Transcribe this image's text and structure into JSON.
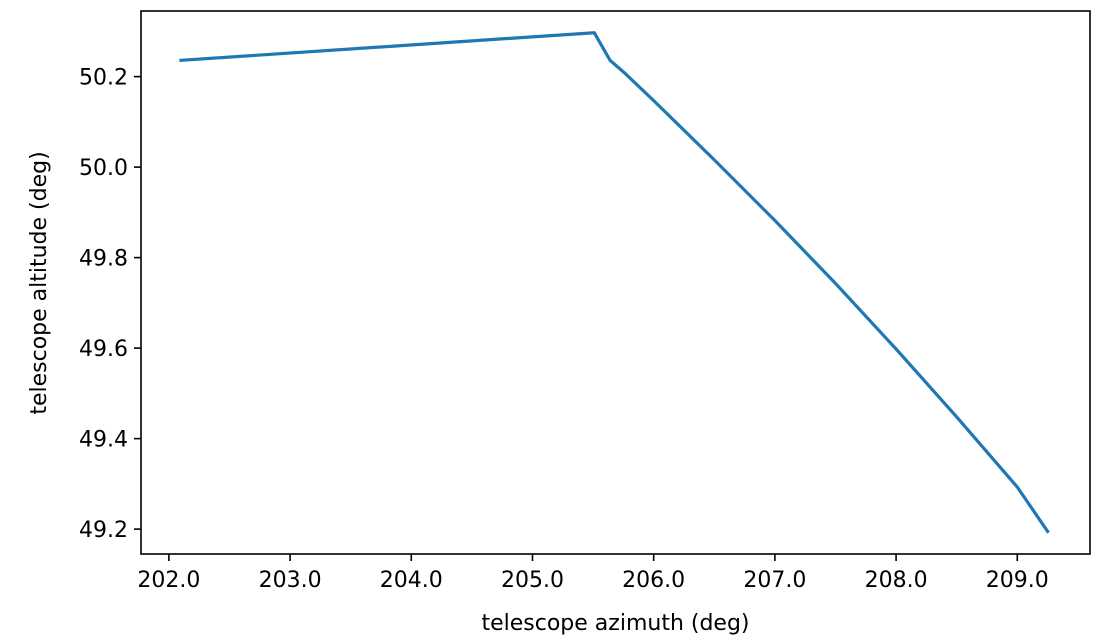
{
  "chart_data": {
    "type": "line",
    "title": "",
    "xlabel": "telescope azimuth (deg)",
    "ylabel": "telescope altitude (deg)",
    "xlim": [
      201.77,
      209.6
    ],
    "ylim": [
      49.145,
      50.345
    ],
    "xticks": [
      202.0,
      203.0,
      204.0,
      205.0,
      206.0,
      207.0,
      208.0,
      209.0
    ],
    "xtick_labels": [
      "202.0",
      "203.0",
      "204.0",
      "205.0",
      "206.0",
      "207.0",
      "208.0",
      "209.0"
    ],
    "yticks": [
      49.2,
      49.4,
      49.6,
      49.8,
      50.0,
      50.2
    ],
    "ytick_labels": [
      "49.2",
      "49.4",
      "49.6",
      "49.8",
      "50.0",
      "50.2"
    ],
    "grid": false,
    "series": [
      {
        "color": "#1f77b4",
        "x": [
          202.1,
          205.51,
          205.64,
          205.76,
          206.0,
          206.5,
          207.0,
          207.5,
          208.0,
          208.5,
          209.0,
          209.25
        ],
        "y": [
          50.236,
          50.297,
          50.236,
          50.208,
          50.147,
          50.016,
          49.882,
          49.743,
          49.598,
          49.448,
          49.293,
          49.195
        ]
      }
    ]
  }
}
